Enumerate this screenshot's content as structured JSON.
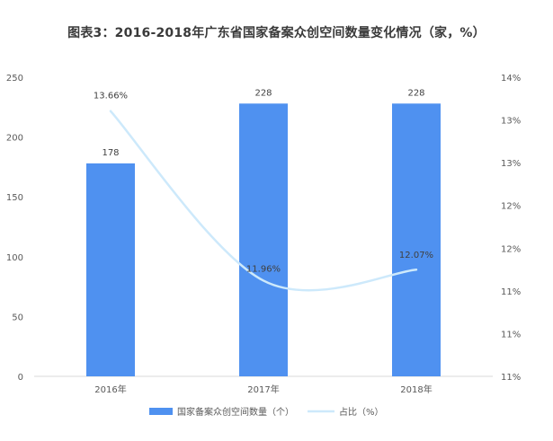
{
  "title": "图表3：2016-2018年广东省国家备案众创空间数量变化情况（家，%）",
  "colors": {
    "bar": "#4f91f0",
    "line": "#cde9fb",
    "axis_text": "#595959",
    "label_text": "#404040",
    "axis_line": "#d9d9d9",
    "watermark": "#f0f3f7"
  },
  "chart_data": {
    "type": "bar",
    "categories": [
      "2016年",
      "2017年",
      "2018年"
    ],
    "series": [
      {
        "name": "国家备案众创空间数量（个）",
        "type": "bar",
        "axis": "left",
        "values": [
          178,
          228,
          228
        ],
        "labels": [
          "178",
          "228",
          "228"
        ]
      },
      {
        "name": "占比（%）",
        "type": "line",
        "smooth": true,
        "axis": "right",
        "values": [
          13.66,
          11.96,
          12.07
        ],
        "labels": [
          "13.66%",
          "11.96%",
          "12.07%"
        ]
      }
    ],
    "ylim_left": [
      0,
      250
    ],
    "yticks_left": [
      "0",
      "50",
      "100",
      "150",
      "200",
      "250"
    ],
    "ylim_right": [
      11,
      14
    ],
    "yticks_right": [
      "11%",
      "11%",
      "11%",
      "12%",
      "12%",
      "13%",
      "13%",
      "14%"
    ],
    "grid": false,
    "legend_position": "bottom"
  }
}
